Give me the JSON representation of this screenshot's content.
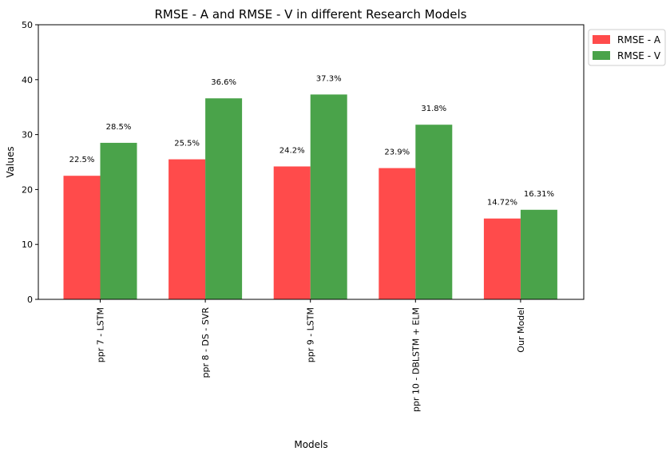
{
  "chart_data": {
    "type": "bar",
    "title": "RMSE - A and RMSE - V in different Research Models",
    "xlabel": "Models",
    "ylabel": "Values",
    "ylim": [
      0,
      50
    ],
    "yticks": [
      0,
      10,
      20,
      30,
      40,
      50
    ],
    "categories": [
      "ppr 7 - LSTM",
      "ppr 8 - DS - SVR",
      "ppr 9 - LSTM",
      "ppr 10 - DBLSTM + ELM",
      "Our Model"
    ],
    "series": [
      {
        "name": "RMSE - A",
        "color": "#ff4b4b",
        "values": [
          22.5,
          25.5,
          24.2,
          23.9,
          14.72
        ],
        "labels": [
          "22.5%",
          "25.5%",
          "24.2%",
          "23.9%",
          "14.72%"
        ]
      },
      {
        "name": "RMSE - V",
        "color": "#4aa34a",
        "values": [
          28.5,
          36.6,
          37.3,
          31.8,
          16.31
        ],
        "labels": [
          "28.5%",
          "36.6%",
          "37.3%",
          "31.8%",
          "16.31%"
        ]
      }
    ],
    "legend": "top-right",
    "grid": false
  }
}
